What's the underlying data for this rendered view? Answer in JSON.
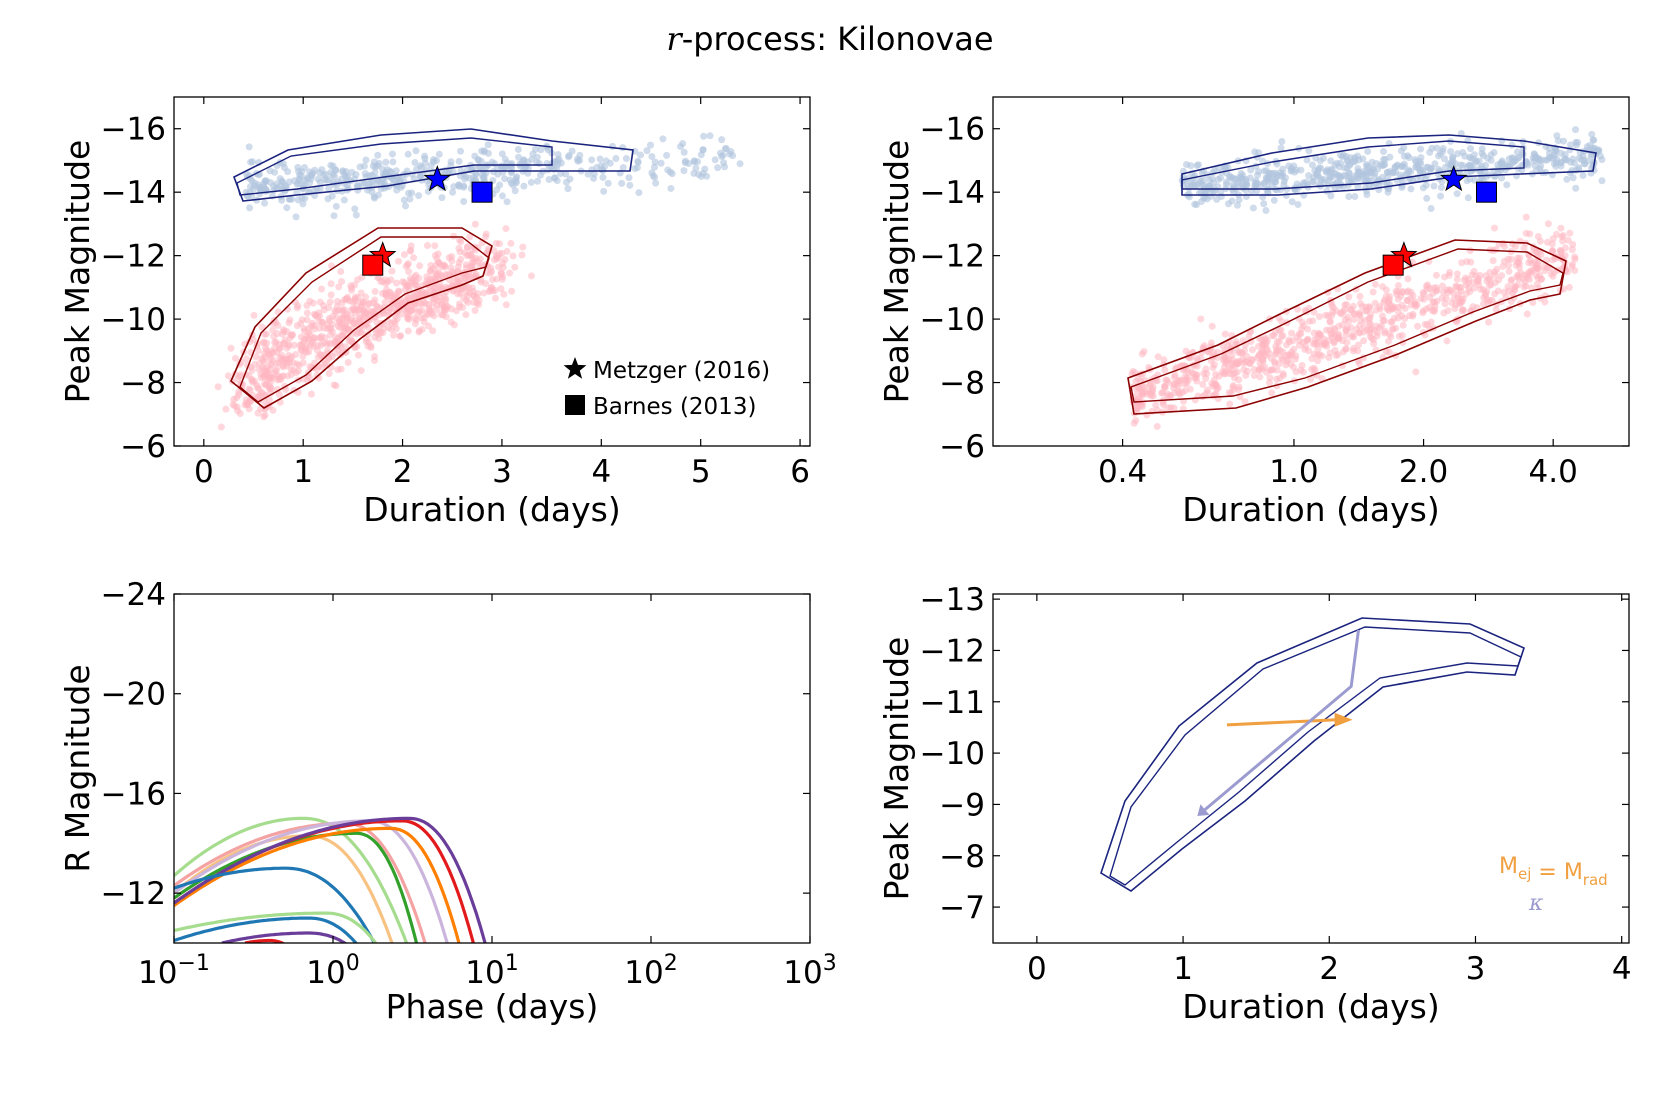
{
  "figure": {
    "title_var": "r",
    "title_rest": "-process: Kilonovae"
  },
  "colors": {
    "blue_contour": "#1a237e",
    "blue_scatter": "#b0c4de",
    "red_contour": "#8b0000",
    "red_scatter": "#ffb6c1",
    "blue_marker": "#0000ff",
    "red_marker": "#ff0000",
    "orange_arrow": "#f0a040",
    "purple_arrow": "#9b9bd0"
  },
  "chart_data": [
    {
      "id": "top-left",
      "type": "scatter",
      "xlabel": "Duration (days)",
      "ylabel": "Peak Magnitude",
      "xscale": "linear",
      "xlim": [
        -0.3,
        6.1
      ],
      "ylim": [
        -6,
        -17
      ],
      "xticks": [
        0,
        1,
        2,
        3,
        4,
        5,
        6
      ],
      "xticklabels": [
        "0",
        "1",
        "2",
        "3",
        "4",
        "5",
        "6"
      ],
      "yticks": [
        -16,
        -14,
        -12,
        -10,
        -8,
        -6
      ],
      "yticklabels": [
        "−16",
        "−14",
        "−12",
        "−10",
        "−8",
        "−6"
      ],
      "markers": [
        {
          "label": "Metzger (2016) blue",
          "shape": "star",
          "x": 2.35,
          "y": -14.4,
          "color": "#0000ff"
        },
        {
          "label": "Barnes (2013) blue",
          "shape": "square",
          "x": 2.8,
          "y": -14.0,
          "color": "#0000ff"
        },
        {
          "label": "Metzger (2016) red",
          "shape": "star",
          "x": 1.8,
          "y": -12.0,
          "color": "#ff0000"
        },
        {
          "label": "Barnes (2013) red",
          "shape": "square",
          "x": 1.7,
          "y": -11.7,
          "color": "#ff0000"
        }
      ],
      "legend": {
        "location": "lower right",
        "entries": [
          {
            "shape": "star",
            "label": "Metzger (2016)"
          },
          {
            "shape": "square",
            "label": "Barnes (2013)"
          }
        ]
      }
    },
    {
      "id": "top-right",
      "type": "scatter",
      "xlabel": "Duration (days)",
      "ylabel": "Peak Magnitude",
      "xscale": "log",
      "xlim": [
        0.2,
        6.0
      ],
      "ylim": [
        -6,
        -17
      ],
      "xticks": [
        0.4,
        1.0,
        2.0,
        4.0
      ],
      "xticklabels": [
        "0.4",
        "1.0",
        "2.0",
        "4.0"
      ],
      "yticks": [
        -16,
        -14,
        -12,
        -10,
        -8,
        -6
      ],
      "yticklabels": [
        "−16",
        "−14",
        "−12",
        "−10",
        "−8",
        "−6"
      ],
      "markers": [
        {
          "label": "Metzger (2016) blue",
          "shape": "star",
          "x": 2.35,
          "y": -14.4,
          "color": "#0000ff"
        },
        {
          "label": "Barnes (2013) blue",
          "shape": "square",
          "x": 2.8,
          "y": -14.0,
          "color": "#0000ff"
        },
        {
          "label": "Metzger (2016) red",
          "shape": "star",
          "x": 1.8,
          "y": -12.0,
          "color": "#ff0000"
        },
        {
          "label": "Barnes (2013) red",
          "shape": "square",
          "x": 1.7,
          "y": -11.7,
          "color": "#ff0000"
        }
      ]
    },
    {
      "id": "bottom-left",
      "type": "line",
      "xlabel": "Phase (days)",
      "ylabel": "R Magnitude",
      "xscale": "log",
      "xlim": [
        0.1,
        1000
      ],
      "ylim": [
        -10,
        -24
      ],
      "xticks": [
        0.1,
        1,
        10,
        100,
        1000
      ],
      "xtick_bases": [
        "10",
        "10",
        "10",
        "10",
        "10"
      ],
      "xtick_exponents": [
        "−1",
        "0",
        "1",
        "2",
        "3"
      ],
      "yticks": [
        -24,
        -20,
        -16,
        -12
      ],
      "yticklabels": [
        "−24",
        "−20",
        "−16",
        "−12"
      ],
      "series": [
        {
          "name": "light green",
          "color": "#a5dc8d",
          "x0": 0.1,
          "y0": -12.7,
          "xpeak": 0.65,
          "ypeak": -15.0,
          "xend": 3.1
        },
        {
          "name": "pink",
          "color": "#f4a2a2",
          "x0": 0.1,
          "y0": -12.3,
          "xpeak": 1.2,
          "ypeak": -14.8,
          "xend": 4.0
        },
        {
          "name": "light orange",
          "color": "#f8c282",
          "x0": 0.1,
          "y0": -12.0,
          "xpeak": 0.7,
          "ypeak": -14.3,
          "xend": 2.5
        },
        {
          "name": "lavender",
          "color": "#cbb5dc",
          "x0": 0.1,
          "y0": -12.0,
          "xpeak": 1.7,
          "ypeak": -14.9,
          "xend": 5.5
        },
        {
          "name": "green",
          "color": "#33a02c",
          "x0": 0.1,
          "y0": -11.8,
          "xpeak": 1.4,
          "ypeak": -14.4,
          "xend": 3.5
        },
        {
          "name": "red",
          "color": "#e31a1c",
          "x0": 0.1,
          "y0": -11.6,
          "xpeak": 2.7,
          "ypeak": -14.9,
          "xend": 8.0
        },
        {
          "name": "orange",
          "color": "#ff7f00",
          "x0": 0.1,
          "y0": -11.5,
          "xpeak": 2.3,
          "ypeak": -14.6,
          "xend": 6.5
        },
        {
          "name": "purple",
          "color": "#6a3d9a",
          "x0": 0.1,
          "y0": -11.6,
          "xpeak": 3.0,
          "ypeak": -15.0,
          "xend": 9.5
        },
        {
          "name": "blue",
          "color": "#1f78b4",
          "x0": 0.1,
          "y0": -12.2,
          "xpeak": 0.5,
          "ypeak": -13.0,
          "xend": 2.0
        },
        {
          "name": "light green low",
          "color": "#a5dc8d",
          "x0": 0.1,
          "y0": -10.5,
          "xpeak": 0.9,
          "ypeak": -11.2,
          "xend": 2.1
        },
        {
          "name": "blue low",
          "color": "#1f78b4",
          "x0": 0.1,
          "y0": -10.1,
          "xpeak": 0.7,
          "ypeak": -11.0,
          "xend": 1.6
        },
        {
          "name": "purple low",
          "color": "#6a3d9a",
          "x0": 0.2,
          "y0": -10.0,
          "xpeak": 0.7,
          "ypeak": -10.4,
          "xend": 1.5
        },
        {
          "name": "red low",
          "color": "#e31a1c",
          "x0": 0.28,
          "y0": -10.0,
          "xpeak": 0.4,
          "ypeak": -10.1,
          "xend": 0.6
        }
      ]
    },
    {
      "id": "bottom-right",
      "type": "line",
      "xlabel": "Duration (days)",
      "ylabel": "Peak Magnitude",
      "xscale": "linear",
      "xlim": [
        -0.3,
        4.05
      ],
      "ylim": [
        -6.3,
        -13.1
      ],
      "xticks": [
        0,
        1,
        2,
        3,
        4
      ],
      "xticklabels": [
        "0",
        "1",
        "2",
        "3",
        "4"
      ],
      "yticks": [
        -13,
        -12,
        -11,
        -10,
        -9,
        -8,
        -7
      ],
      "yticklabels": [
        "−13",
        "−12",
        "−11",
        "−10",
        "−9",
        "−8",
        "−7"
      ],
      "arrows": [
        {
          "name": "M_ej = M_rad",
          "color": "#f0a040",
          "from": [
            1.3,
            -10.55
          ],
          "to": [
            2.05,
            -10.65
          ]
        },
        {
          "name": "kappa",
          "color": "#9b9bd0",
          "points": [
            [
              2.2,
              -12.4
            ],
            [
              2.15,
              -11.3
            ],
            [
              1.15,
              -8.9
            ]
          ]
        }
      ],
      "annotations": {
        "mej_base": "M",
        "mej_sub": "ej",
        "equals": " = ",
        "mrad_base": "M",
        "mrad_sub": "rad",
        "kappa": "κ"
      }
    }
  ]
}
